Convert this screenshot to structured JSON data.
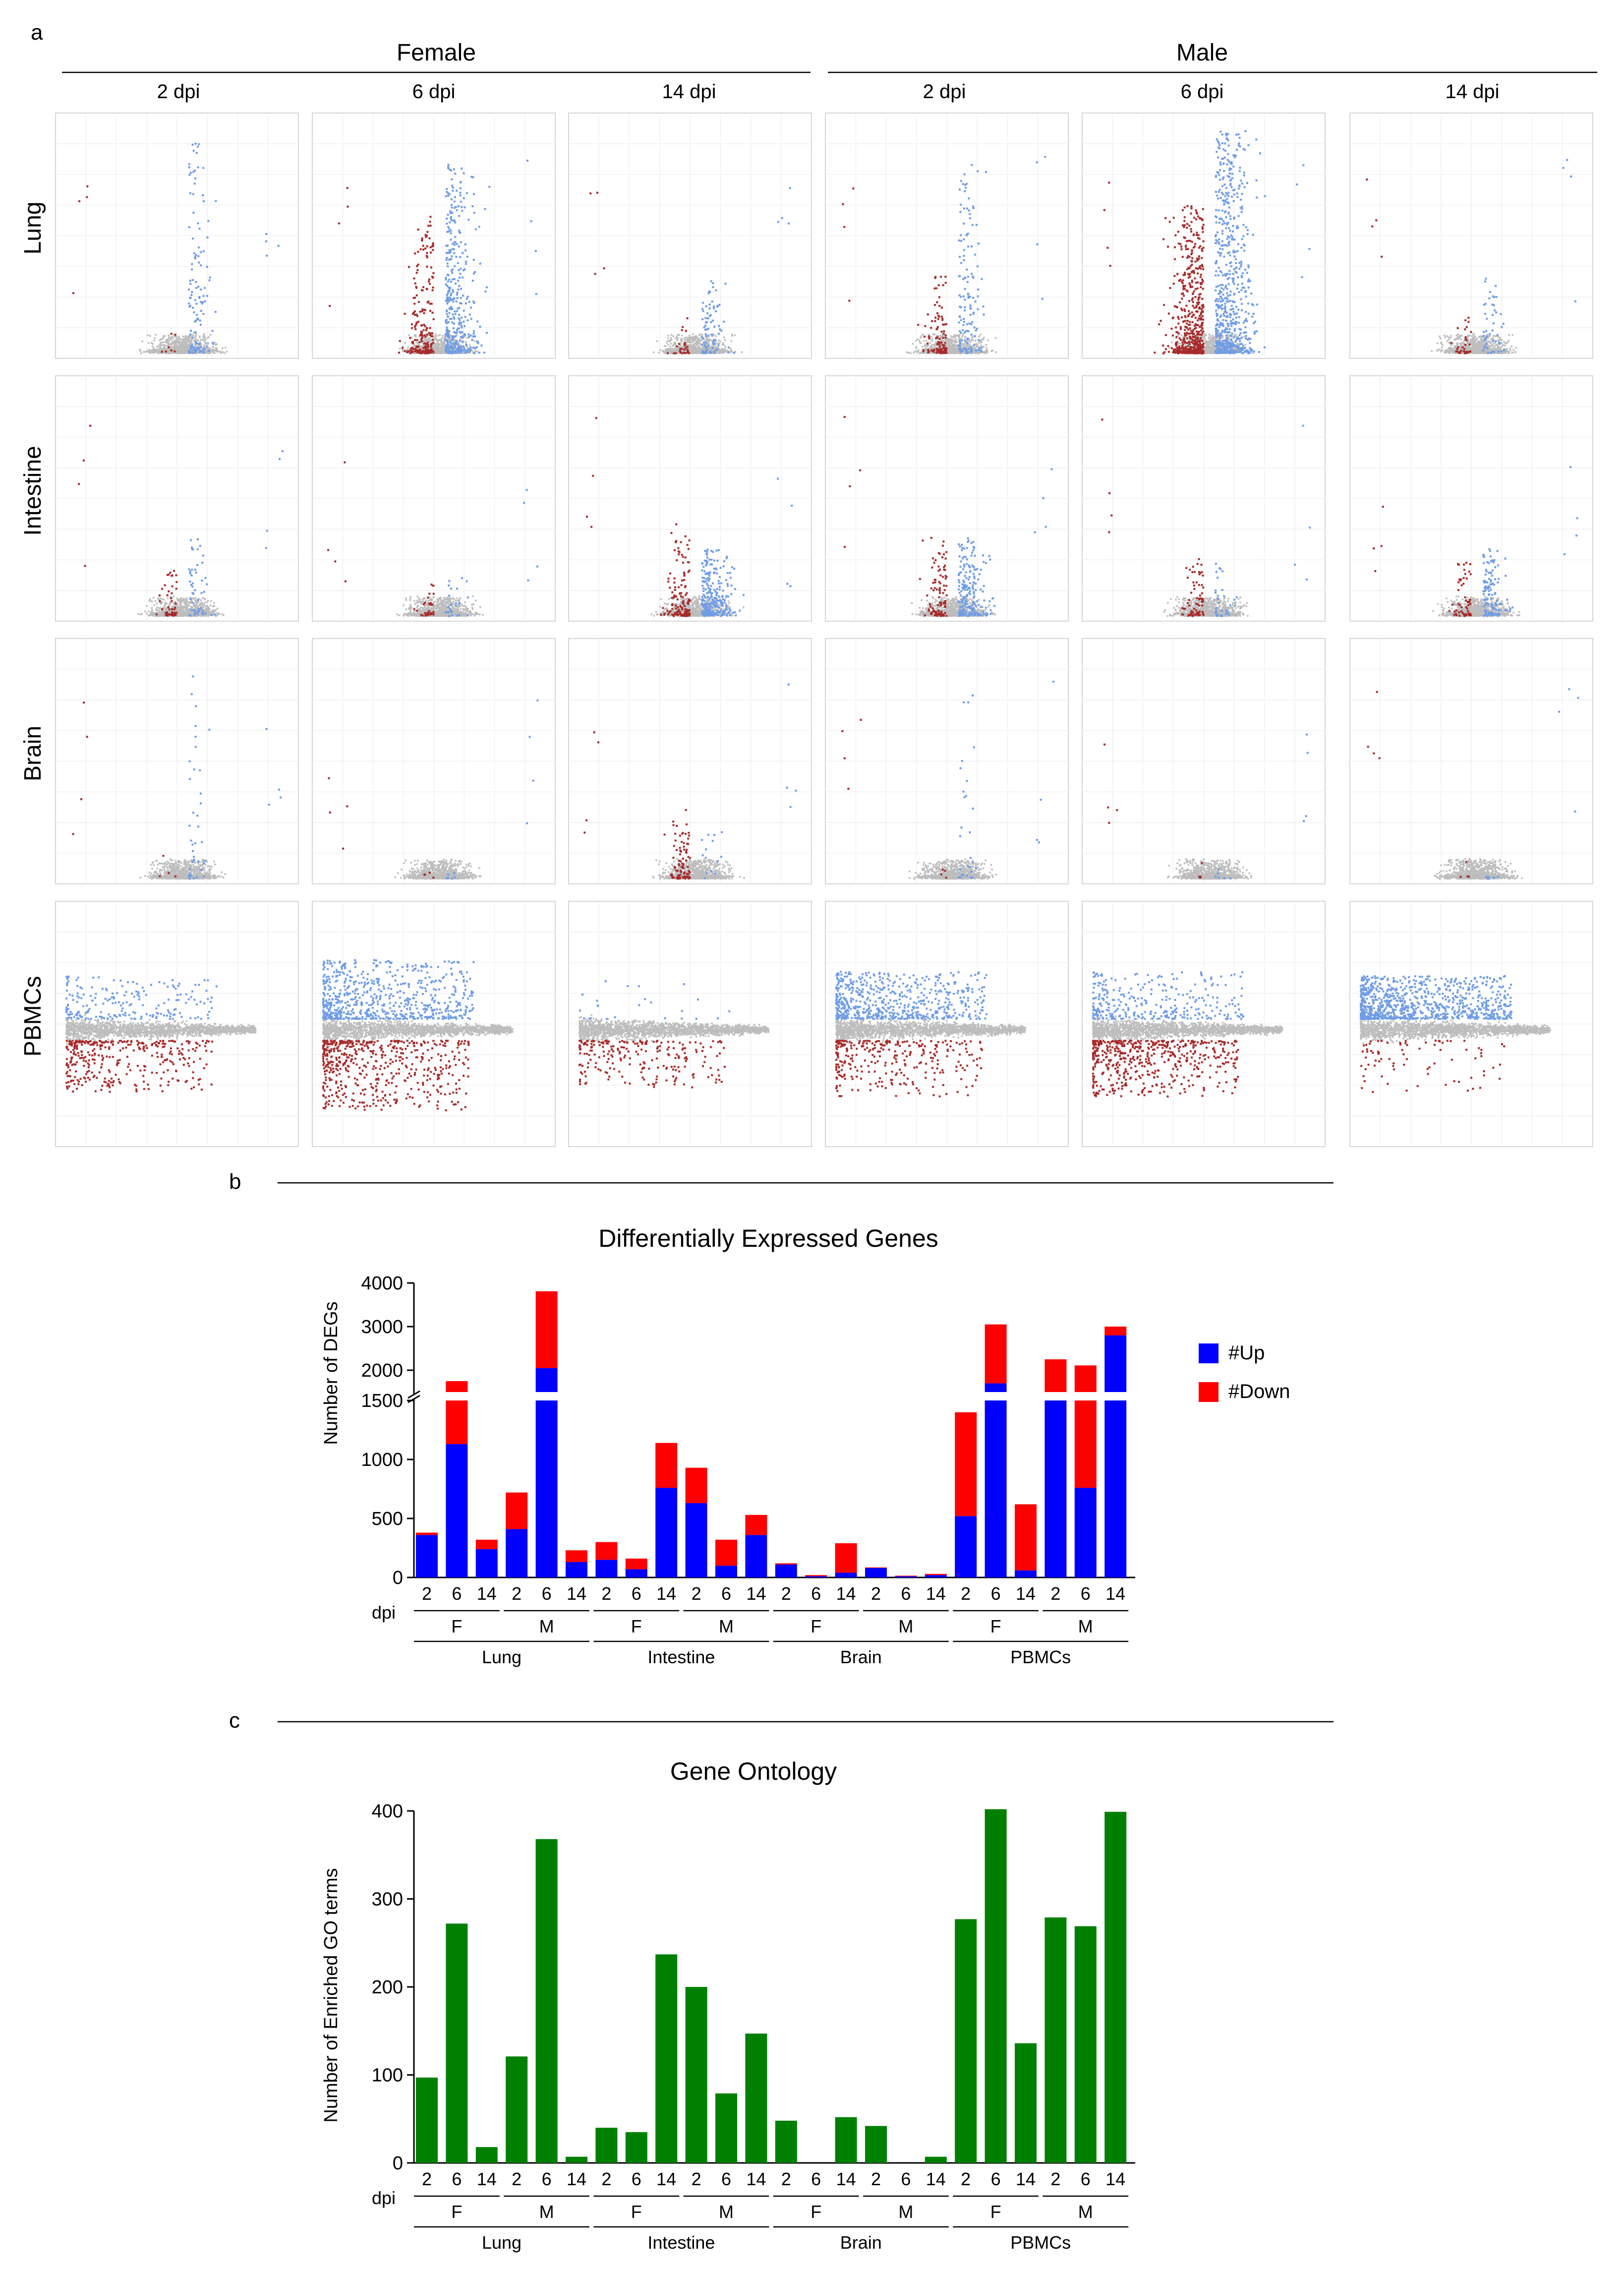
{
  "figure": {
    "panel_a": {
      "label": "a",
      "sexes": [
        "Female",
        "Male"
      ],
      "timepoints": [
        "2 dpi",
        "6 dpi",
        "14 dpi"
      ],
      "tissues": [
        "Lung",
        "Intestine",
        "Brain",
        "PBMCs"
      ],
      "colors": {
        "up": "#6f9ce6",
        "down": "#a82a2a",
        "ns": "#bdbdbd",
        "grid": "#eeeeee",
        "frame": "#d6d6d6"
      },
      "plots": [
        {
          "tissue": "Lung",
          "sex": "Female",
          "dpi": "2 dpi",
          "type": "volcano",
          "up": 360,
          "down": 20,
          "spread": 0.95
        },
        {
          "tissue": "Lung",
          "sex": "Female",
          "dpi": "6 dpi",
          "type": "volcano",
          "up": 1130,
          "down": 620,
          "spread": 0.85
        },
        {
          "tissue": "Lung",
          "sex": "Female",
          "dpi": "14 dpi",
          "type": "volcano",
          "up": 240,
          "down": 80,
          "spread": 0.35
        },
        {
          "tissue": "Lung",
          "sex": "Male",
          "dpi": "2 dpi",
          "type": "volcano",
          "up": 410,
          "down": 310,
          "spread": 0.85
        },
        {
          "tissue": "Lung",
          "sex": "Male",
          "dpi": "6 dpi",
          "type": "volcano",
          "up": 2050,
          "down": 1760,
          "spread": 1.0
        },
        {
          "tissue": "Lung",
          "sex": "Male",
          "dpi": "14 dpi",
          "type": "volcano",
          "up": 130,
          "down": 100,
          "spread": 0.35
        },
        {
          "tissue": "Intestine",
          "sex": "Female",
          "dpi": "2 dpi",
          "type": "volcano",
          "up": 150,
          "down": 150,
          "spread": 0.35
        },
        {
          "tissue": "Intestine",
          "sex": "Female",
          "dpi": "6 dpi",
          "type": "volcano",
          "up": 70,
          "down": 90,
          "spread": 0.2
        },
        {
          "tissue": "Intestine",
          "sex": "Female",
          "dpi": "14 dpi",
          "type": "volcano",
          "up": 760,
          "down": 380,
          "spread": 0.3
        },
        {
          "tissue": "Intestine",
          "sex": "Male",
          "dpi": "2 dpi",
          "type": "volcano",
          "up": 630,
          "down": 300,
          "spread": 0.35
        },
        {
          "tissue": "Intestine",
          "sex": "Male",
          "dpi": "6 dpi",
          "type": "volcano",
          "up": 100,
          "down": 220,
          "spread": 0.25
        },
        {
          "tissue": "Intestine",
          "sex": "Male",
          "dpi": "14 dpi",
          "type": "volcano",
          "up": 360,
          "down": 170,
          "spread": 0.3
        },
        {
          "tissue": "Brain",
          "sex": "Female",
          "dpi": "2 dpi",
          "type": "volcano",
          "up": 110,
          "down": 10,
          "spread": 0.95
        },
        {
          "tissue": "Brain",
          "sex": "Female",
          "dpi": "6 dpi",
          "type": "volcano",
          "up": 10,
          "down": 10,
          "spread": 0.05
        },
        {
          "tissue": "Brain",
          "sex": "Female",
          "dpi": "14 dpi",
          "type": "volcano",
          "up": 40,
          "down": 250,
          "spread": 0.25
        },
        {
          "tissue": "Brain",
          "sex": "Male",
          "dpi": "2 dpi",
          "type": "volcano",
          "up": 80,
          "down": 5,
          "spread": 0.85
        },
        {
          "tissue": "Brain",
          "sex": "Male",
          "dpi": "6 dpi",
          "type": "volcano",
          "up": 10,
          "down": 5,
          "spread": 0.05
        },
        {
          "tissue": "Brain",
          "sex": "Male",
          "dpi": "14 dpi",
          "type": "volcano",
          "up": 20,
          "down": 10,
          "spread": 0.05
        },
        {
          "tissue": "PBMCs",
          "sex": "Female",
          "dpi": "2 dpi",
          "type": "ma",
          "up": 520,
          "down": 880,
          "spread": 0.55
        },
        {
          "tissue": "PBMCs",
          "sex": "Female",
          "dpi": "6 dpi",
          "type": "ma",
          "up": 1700,
          "down": 1350,
          "spread": 0.75
        },
        {
          "tissue": "PBMCs",
          "sex": "Female",
          "dpi": "14 dpi",
          "type": "ma",
          "up": 60,
          "down": 560,
          "spread": 0.5
        },
        {
          "tissue": "PBMCs",
          "sex": "Male",
          "dpi": "2 dpi",
          "type": "ma",
          "up": 1500,
          "down": 750,
          "spread": 0.6
        },
        {
          "tissue": "PBMCs",
          "sex": "Male",
          "dpi": "6 dpi",
          "type": "ma",
          "up": 760,
          "down": 1350,
          "spread": 0.6
        },
        {
          "tissue": "PBMCs",
          "sex": "Male",
          "dpi": "14 dpi",
          "type": "ma",
          "up": 2800,
          "down": 200,
          "spread": 0.55
        }
      ]
    },
    "panel_b": {
      "label": "b"
    },
    "panel_c": {
      "label": "c"
    },
    "x_axis": {
      "dpi_label": "dpi",
      "dpi_values": [
        "2",
        "6",
        "14"
      ],
      "sex_labels": [
        "F",
        "M"
      ],
      "tissues": [
        "Lung",
        "Intestine",
        "Brain",
        "PBMCs"
      ]
    }
  },
  "chart_data": [
    {
      "type": "bar",
      "stacked": true,
      "title": "Differentially Expressed Genes",
      "ylabel": "Number of DEGs",
      "xlabel": "dpi",
      "axis_break": {
        "lower": [
          0,
          1500
        ],
        "upper": [
          1500,
          4000
        ]
      },
      "lower_ticks": [
        0,
        500,
        1000,
        1500
      ],
      "upper_ticks": [
        2000,
        3000,
        4000
      ],
      "categories": [
        "Lung F 2",
        "Lung F 6",
        "Lung F 14",
        "Lung M 2",
        "Lung M 6",
        "Lung M 14",
        "Intestine F 2",
        "Intestine F 6",
        "Intestine F 14",
        "Intestine M 2",
        "Intestine M 6",
        "Intestine M 14",
        "Brain F 2",
        "Brain F 6",
        "Brain F 14",
        "Brain M 2",
        "Brain M 6",
        "Brain M 14",
        "PBMCs F 2",
        "PBMCs F 6",
        "PBMCs F 14",
        "PBMCs M 2",
        "PBMCs M 6",
        "PBMCs M 14"
      ],
      "series": [
        {
          "name": "#Up",
          "color": "#0000ff",
          "values": [
            360,
            1130,
            240,
            410,
            2050,
            130,
            150,
            70,
            760,
            630,
            100,
            360,
            110,
            10,
            40,
            80,
            10,
            20,
            520,
            1700,
            60,
            1500,
            760,
            2800
          ]
        },
        {
          "name": "#Down",
          "color": "#ff0000",
          "values": [
            20,
            620,
            80,
            310,
            1760,
            100,
            150,
            90,
            380,
            300,
            220,
            170,
            10,
            10,
            250,
            5,
            5,
            10,
            880,
            1350,
            560,
            750,
            1350,
            200
          ]
        }
      ],
      "legend_position": "right"
    },
    {
      "type": "bar",
      "title": "Gene Ontology",
      "ylabel": "Number of Enriched GO terms",
      "xlabel": "dpi",
      "ylim": [
        0,
        400
      ],
      "ticks": [
        0,
        100,
        200,
        300,
        400
      ],
      "color": "#008000",
      "categories": [
        "Lung F 2",
        "Lung F 6",
        "Lung F 14",
        "Lung M 2",
        "Lung M 6",
        "Lung M 14",
        "Intestine F 2",
        "Intestine F 6",
        "Intestine F 14",
        "Intestine M 2",
        "Intestine M 6",
        "Intestine M 14",
        "Brain F 2",
        "Brain F 6",
        "Brain F 14",
        "Brain M 2",
        "Brain M 6",
        "Brain M 14",
        "PBMCs F 2",
        "PBMCs F 6",
        "PBMCs F 14",
        "PBMCs M 2",
        "PBMCs M 6",
        "PBMCs M 14"
      ],
      "values": [
        97,
        272,
        18,
        121,
        368,
        7,
        40,
        35,
        237,
        200,
        79,
        147,
        48,
        0,
        52,
        42,
        0,
        7,
        277,
        402,
        136,
        279,
        269,
        399
      ]
    }
  ]
}
